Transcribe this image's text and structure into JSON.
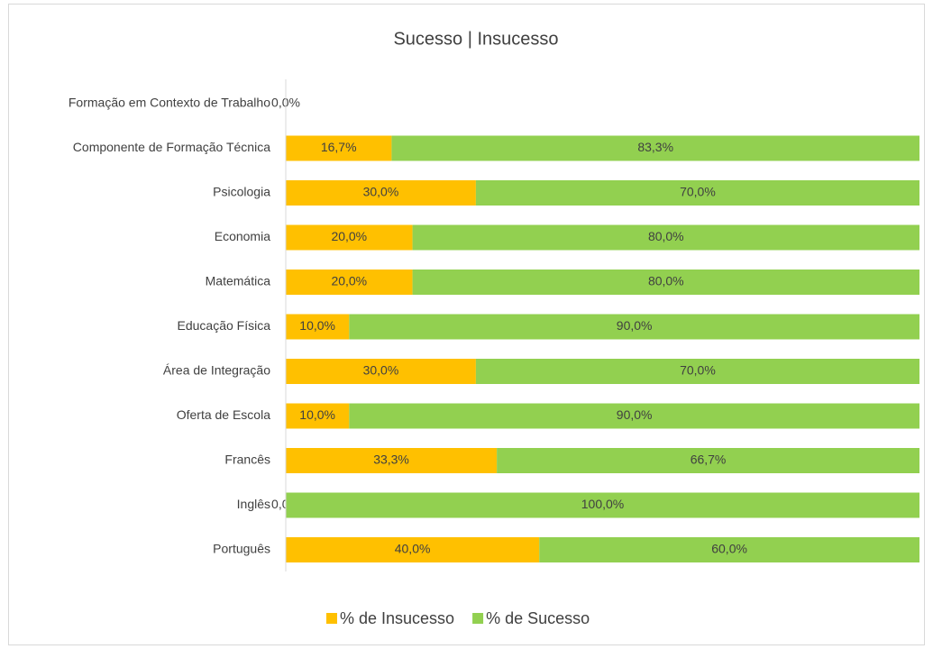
{
  "chart_data": {
    "type": "stacked-bar-horizontal",
    "title": "Sucesso | Insucesso",
    "categories": [
      "Formação em Contexto de Trabalho",
      "Componente de Formação Técnica",
      "Psicologia",
      "Economia",
      "Matemática",
      "Educação Física",
      "Área de Integração",
      "Oferta de Escola",
      "Francês",
      "Inglês",
      "Português"
    ],
    "xlim": [
      0,
      100
    ],
    "series": [
      {
        "name": "% de Insucesso",
        "color": "#FFC000",
        "values": [
          0,
          16.7,
          30,
          20,
          20,
          10,
          30,
          10,
          33.3,
          0,
          40
        ],
        "value_labels": [
          "0,0%",
          "16,7%",
          "30,0%",
          "20,0%",
          "20,0%",
          "10,0%",
          "30,0%",
          "10,0%",
          "33,3%",
          "0,0%",
          "40,0%"
        ]
      },
      {
        "name": "% de Sucesso",
        "color": "#92D050",
        "values": [
          null,
          83.3,
          70,
          80,
          80,
          90,
          70,
          90,
          66.7,
          100,
          60
        ],
        "value_labels": [
          null,
          "83,3%",
          "70,0%",
          "80,0%",
          "80,0%",
          "90,0%",
          "70,0%",
          "90,0%",
          "66,7%",
          "100,0%",
          "60,0%"
        ]
      }
    ]
  }
}
